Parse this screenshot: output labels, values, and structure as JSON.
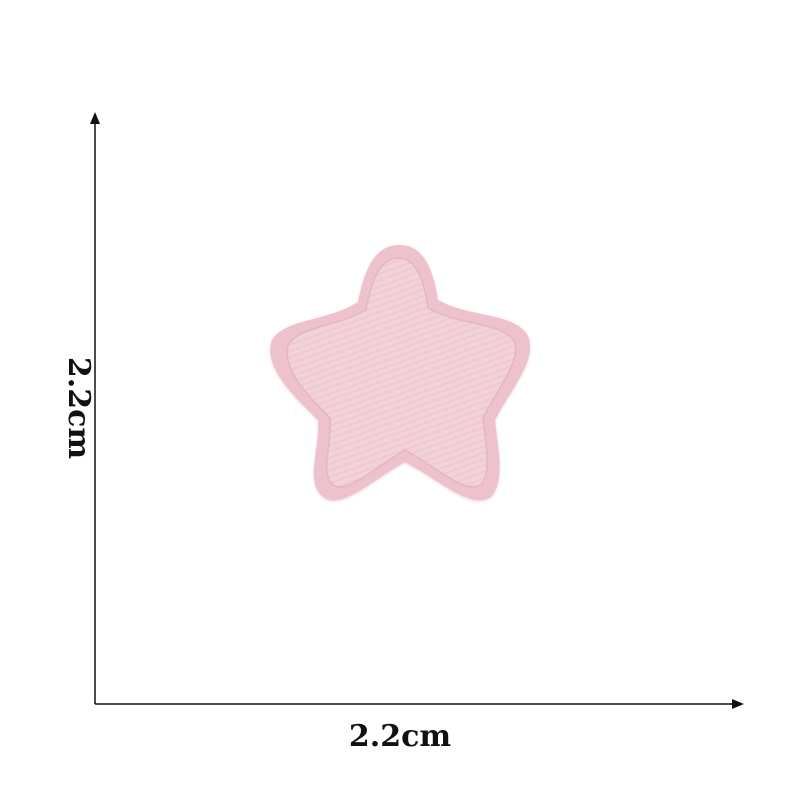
{
  "dimensions": {
    "width_label": "2.2cm",
    "height_label": "2.2cm"
  },
  "patch": {
    "shape": "star",
    "description_colors": {
      "fill": "#f1cfd7",
      "edge": "#e8b9c4",
      "stitch": "#eec4ce"
    }
  },
  "colors": {
    "background": "#ffffff",
    "axis": "#111111"
  }
}
